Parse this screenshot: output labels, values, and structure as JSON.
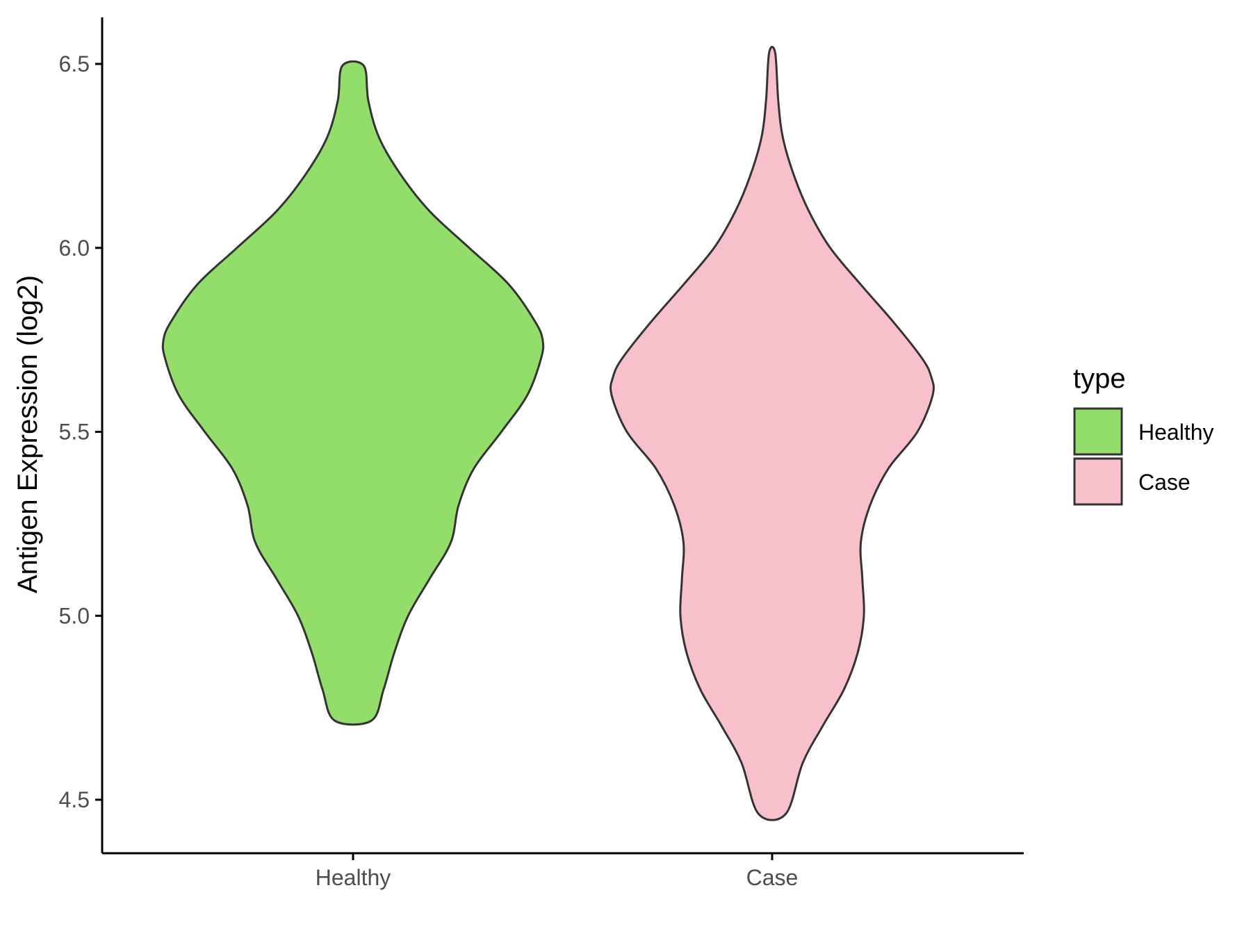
{
  "chart_data": {
    "type": "violin",
    "title": "",
    "xlabel": "",
    "ylabel": "Antigen Expression (log2)",
    "categories": [
      "Healthy",
      "Case"
    ],
    "ylim": [
      4.37,
      6.64
    ],
    "yticks": [
      4.5,
      5.0,
      5.5,
      6.0,
      6.5
    ],
    "ytick_labels": [
      "4.5",
      "5.0",
      "5.5",
      "6.0",
      "6.5"
    ],
    "grid": false,
    "legend": {
      "title": "type",
      "position": "right",
      "entries": [
        {
          "label": "Healthy",
          "color": "#93dd6b"
        },
        {
          "label": "Case",
          "color": "#f8c0cb"
        }
      ]
    },
    "series": [
      {
        "category": "Healthy",
        "color": "#93dd6b",
        "min": 4.715,
        "max": 6.495,
        "density_profile": [
          [
            4.715,
            0.12
          ],
          [
            4.8,
            0.2
          ],
          [
            4.9,
            0.27
          ],
          [
            5.0,
            0.36
          ],
          [
            5.1,
            0.5
          ],
          [
            5.2,
            0.64
          ],
          [
            5.3,
            0.69
          ],
          [
            5.4,
            0.79
          ],
          [
            5.5,
            0.97
          ],
          [
            5.6,
            1.14
          ],
          [
            5.7,
            1.23
          ],
          [
            5.75,
            1.24
          ],
          [
            5.8,
            1.19
          ],
          [
            5.9,
            1.02
          ],
          [
            6.0,
            0.76
          ],
          [
            6.1,
            0.5
          ],
          [
            6.2,
            0.31
          ],
          [
            6.3,
            0.17
          ],
          [
            6.4,
            0.1
          ],
          [
            6.495,
            0.07
          ]
        ]
      },
      {
        "category": "Case",
        "color": "#f8c0cb",
        "min": 4.462,
        "max": 6.53,
        "density_profile": [
          [
            4.462,
            0.09
          ],
          [
            4.6,
            0.2
          ],
          [
            4.7,
            0.33
          ],
          [
            4.8,
            0.47
          ],
          [
            4.9,
            0.56
          ],
          [
            5.0,
            0.6
          ],
          [
            5.1,
            0.59
          ],
          [
            5.2,
            0.58
          ],
          [
            5.3,
            0.64
          ],
          [
            5.4,
            0.76
          ],
          [
            5.5,
            0.95
          ],
          [
            5.6,
            1.05
          ],
          [
            5.65,
            1.04
          ],
          [
            5.7,
            0.98
          ],
          [
            5.8,
            0.79
          ],
          [
            5.9,
            0.58
          ],
          [
            6.0,
            0.38
          ],
          [
            6.1,
            0.24
          ],
          [
            6.2,
            0.14
          ],
          [
            6.3,
            0.07
          ],
          [
            6.4,
            0.04
          ],
          [
            6.53,
            0.02
          ]
        ]
      }
    ]
  }
}
